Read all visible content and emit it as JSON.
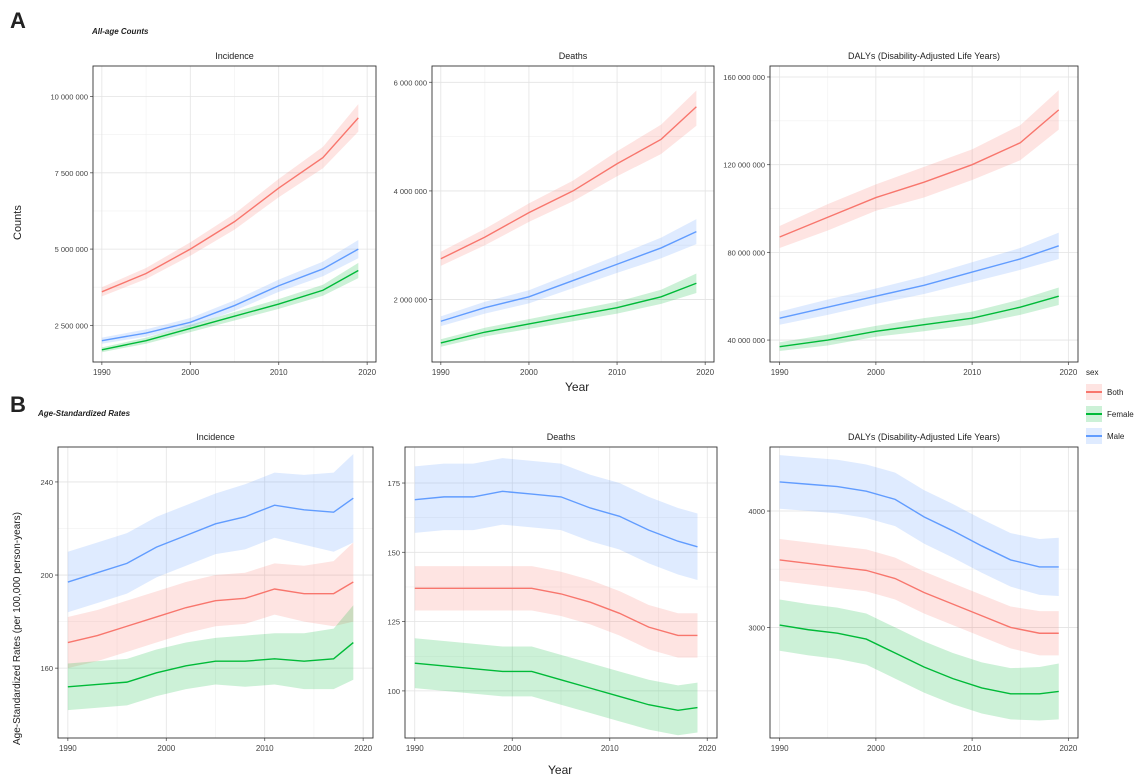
{
  "figure": {
    "panel_a_letter": "A",
    "panel_a_subtitle": "All-age Counts",
    "panel_a_ylabel": "Counts",
    "panel_a_xlabel": "Year",
    "panel_b_letter": "B",
    "panel_b_subtitle": "Age-Standardized Rates",
    "panel_b_ylabel": "Age-Standardized Rates (per 100,000 person-years)",
    "panel_b_xlabel": "Year"
  },
  "legend": {
    "title": "sex",
    "items": [
      {
        "label": "Both",
        "color": "#F8766D"
      },
      {
        "label": "Female",
        "color": "#00BA38"
      },
      {
        "label": "Male",
        "color": "#619CFF"
      }
    ]
  },
  "chart_data": [
    {
      "type": "line",
      "panel": "A",
      "title": "Incidence",
      "x": [
        1990,
        1995,
        2000,
        2005,
        2010,
        2015,
        2019
      ],
      "xlim": [
        1989,
        2021
      ],
      "ylim": [
        1300000,
        11000000
      ],
      "xticks": [
        1990,
        2000,
        2010,
        2020
      ],
      "xtick_labels": [
        "1990",
        "2000",
        "2010",
        "2020"
      ],
      "yticks": [
        2500000,
        5000000,
        7500000,
        10000000
      ],
      "ytick_labels": [
        "2 500 000",
        "5 000 000",
        "7 500 000",
        "10 000 000"
      ],
      "series": [
        {
          "name": "Both",
          "values": [
            3600000,
            4200000,
            5000000,
            5900000,
            7000000,
            8000000,
            9300000
          ],
          "lower": [
            3450000,
            4020000,
            4780000,
            5640000,
            6700000,
            7650000,
            8850000
          ],
          "upper": [
            3750000,
            4380000,
            5220000,
            6160000,
            7300000,
            8350000,
            9750000
          ]
        },
        {
          "name": "Female",
          "values": [
            1700000,
            2000000,
            2400000,
            2800000,
            3200000,
            3650000,
            4300000
          ],
          "lower": [
            1620000,
            1900000,
            2280000,
            2660000,
            3040000,
            3470000,
            4050000
          ],
          "upper": [
            1780000,
            2100000,
            2520000,
            2940000,
            3360000,
            3830000,
            4550000
          ]
        },
        {
          "name": "Male",
          "values": [
            2000000,
            2250000,
            2600000,
            3150000,
            3800000,
            4350000,
            5000000
          ],
          "lower": [
            1900000,
            2130000,
            2460000,
            2980000,
            3600000,
            4110000,
            4700000
          ],
          "upper": [
            2100000,
            2370000,
            2740000,
            3320000,
            4000000,
            4590000,
            5300000
          ]
        }
      ]
    },
    {
      "type": "line",
      "panel": "A",
      "title": "Deaths",
      "x": [
        1990,
        1995,
        2000,
        2005,
        2010,
        2015,
        2019
      ],
      "xlim": [
        1989,
        2021
      ],
      "ylim": [
        850000,
        6300000
      ],
      "xticks": [
        1990,
        2000,
        2010,
        2020
      ],
      "xtick_labels": [
        "1990",
        "2000",
        "2010",
        "2020"
      ],
      "yticks": [
        2000000,
        4000000,
        6000000
      ],
      "ytick_labels": [
        "2 000 000",
        "4 000 000",
        "6 000 000"
      ],
      "series": [
        {
          "name": "Both",
          "values": [
            2750000,
            3150000,
            3600000,
            4000000,
            4500000,
            4950000,
            5550000
          ],
          "lower": [
            2620000,
            3000000,
            3430000,
            3810000,
            4270000,
            4680000,
            5200000
          ],
          "upper": [
            2880000,
            3300000,
            3770000,
            4190000,
            4730000,
            5220000,
            5850000
          ]
        },
        {
          "name": "Female",
          "values": [
            1200000,
            1400000,
            1550000,
            1700000,
            1850000,
            2050000,
            2300000
          ],
          "lower": [
            1130000,
            1320000,
            1460000,
            1600000,
            1740000,
            1920000,
            2120000
          ],
          "upper": [
            1270000,
            1480000,
            1640000,
            1800000,
            1960000,
            2180000,
            2480000
          ]
        },
        {
          "name": "Male",
          "values": [
            1600000,
            1850000,
            2050000,
            2350000,
            2650000,
            2950000,
            3250000
          ],
          "lower": [
            1510000,
            1740000,
            1930000,
            2210000,
            2490000,
            2760000,
            3020000
          ],
          "upper": [
            1690000,
            1960000,
            2170000,
            2490000,
            2810000,
            3140000,
            3480000
          ]
        }
      ]
    },
    {
      "type": "line",
      "panel": "A",
      "title": "DALYs (Disability-Adjusted Life Years)",
      "x": [
        1990,
        1995,
        2000,
        2005,
        2010,
        2015,
        2019
      ],
      "xlim": [
        1989,
        2021
      ],
      "ylim": [
        30000000,
        165000000
      ],
      "xticks": [
        1990,
        2000,
        2010,
        2020
      ],
      "xtick_labels": [
        "1990",
        "2000",
        "2010",
        "2020"
      ],
      "yticks": [
        40000000,
        80000000,
        120000000,
        160000000
      ],
      "ytick_labels": [
        "40 000 000",
        "80 000 000",
        "120 000 000",
        "160 000 000"
      ],
      "series": [
        {
          "name": "Both",
          "values": [
            87000000,
            96000000,
            105000000,
            112000000,
            120000000,
            130000000,
            145000000
          ],
          "lower": [
            82000000,
            90000000,
            99000000,
            105000000,
            113000000,
            122000000,
            136000000
          ],
          "upper": [
            92000000,
            102000000,
            111000000,
            119000000,
            127000000,
            138000000,
            154000000
          ]
        },
        {
          "name": "Female",
          "values": [
            37000000,
            40000000,
            44000000,
            47000000,
            50000000,
            55000000,
            60000000
          ],
          "lower": [
            35000000,
            37500000,
            41500000,
            44000000,
            47000000,
            51500000,
            56000000
          ],
          "upper": [
            39000000,
            42500000,
            46500000,
            50000000,
            53000000,
            58500000,
            64000000
          ]
        },
        {
          "name": "Male",
          "values": [
            50000000,
            55000000,
            60000000,
            65000000,
            71000000,
            77000000,
            83000000
          ],
          "lower": [
            47000000,
            51500000,
            56500000,
            61000000,
            66500000,
            72000000,
            77000000
          ],
          "upper": [
            53000000,
            58500000,
            63500000,
            69000000,
            75500000,
            82000000,
            89000000
          ]
        }
      ]
    },
    {
      "type": "line",
      "panel": "B",
      "title": "Incidence",
      "x": [
        1990,
        1993,
        1996,
        1999,
        2002,
        2005,
        2008,
        2011,
        2014,
        2017,
        2019
      ],
      "xlim": [
        1989,
        2021
      ],
      "ylim": [
        130,
        255
      ],
      "xticks": [
        1990,
        2000,
        2010,
        2020
      ],
      "xtick_labels": [
        "1990",
        "2000",
        "2010",
        "2020"
      ],
      "yticks": [
        160,
        200,
        240
      ],
      "ytick_labels": [
        "160",
        "200",
        "240"
      ],
      "series": [
        {
          "name": "Both",
          "values": [
            171,
            174,
            178,
            182,
            186,
            189,
            190,
            194,
            192,
            192,
            197
          ],
          "lower": [
            160,
            163,
            167,
            171,
            175,
            178,
            179,
            183,
            180,
            178,
            180
          ],
          "upper": [
            182,
            185,
            189,
            193,
            197,
            200,
            201,
            205,
            204,
            206,
            214
          ]
        },
        {
          "name": "Female",
          "values": [
            152,
            153,
            154,
            158,
            161,
            163,
            163,
            164,
            163,
            164,
            171
          ],
          "lower": [
            142,
            143,
            144,
            148,
            151,
            153,
            152,
            153,
            151,
            151,
            155
          ],
          "upper": [
            162,
            163,
            164,
            168,
            171,
            173,
            174,
            175,
            175,
            177,
            187
          ]
        },
        {
          "name": "Male",
          "values": [
            197,
            201,
            205,
            212,
            217,
            222,
            225,
            230,
            228,
            227,
            233
          ],
          "lower": [
            184,
            188,
            192,
            199,
            204,
            209,
            211,
            216,
            213,
            210,
            214
          ],
          "upper": [
            210,
            214,
            218,
            225,
            230,
            235,
            239,
            244,
            243,
            244,
            252
          ]
        }
      ]
    },
    {
      "type": "line",
      "panel": "B",
      "title": "Deaths",
      "x": [
        1990,
        1993,
        1996,
        1999,
        2002,
        2005,
        2008,
        2011,
        2014,
        2017,
        2019
      ],
      "xlim": [
        1989,
        2021
      ],
      "ylim": [
        83,
        188
      ],
      "xticks": [
        1990,
        2000,
        2010,
        2020
      ],
      "xtick_labels": [
        "1990",
        "2000",
        "2010",
        "2020"
      ],
      "yticks": [
        100,
        125,
        150,
        175
      ],
      "ytick_labels": [
        "100",
        "125",
        "150",
        "175"
      ],
      "series": [
        {
          "name": "Both",
          "values": [
            137,
            137,
            137,
            137,
            137,
            135,
            132,
            128,
            123,
            120,
            120
          ],
          "lower": [
            129,
            129,
            129,
            129,
            129,
            127,
            124,
            120,
            115,
            112,
            112
          ],
          "upper": [
            145,
            145,
            145,
            145,
            145,
            143,
            140,
            136,
            131,
            128,
            128
          ]
        },
        {
          "name": "Female",
          "values": [
            110,
            109,
            108,
            107,
            107,
            104,
            101,
            98,
            95,
            93,
            94
          ],
          "lower": [
            101,
            100,
            99,
            98,
            98,
            95,
            92,
            89,
            86,
            84,
            85
          ],
          "upper": [
            119,
            118,
            117,
            116,
            116,
            113,
            110,
            107,
            104,
            102,
            103
          ]
        },
        {
          "name": "Male",
          "values": [
            169,
            170,
            170,
            172,
            171,
            170,
            166,
            163,
            158,
            154,
            152
          ],
          "lower": [
            157,
            158,
            158,
            160,
            159,
            158,
            154,
            151,
            146,
            142,
            140
          ],
          "upper": [
            181,
            182,
            182,
            184,
            183,
            182,
            178,
            175,
            170,
            166,
            164
          ]
        }
      ]
    },
    {
      "type": "line",
      "panel": "B",
      "title": "DALYs (Disability-Adjusted Life Years)",
      "x": [
        1990,
        1993,
        1996,
        1999,
        2002,
        2005,
        2008,
        2011,
        2014,
        2017,
        2019
      ],
      "xlim": [
        1989,
        2021
      ],
      "ylim": [
        2050,
        4550
      ],
      "xticks": [
        1990,
        2000,
        2010,
        2020
      ],
      "xtick_labels": [
        "1990",
        "2000",
        "2010",
        "2020"
      ],
      "yticks": [
        3000,
        4000
      ],
      "ytick_labels": [
        "3000",
        "4000"
      ],
      "series": [
        {
          "name": "Both",
          "values": [
            3580,
            3550,
            3520,
            3490,
            3420,
            3300,
            3200,
            3100,
            3000,
            2950,
            2950
          ],
          "lower": [
            3400,
            3370,
            3340,
            3310,
            3240,
            3120,
            3020,
            2920,
            2820,
            2760,
            2760
          ],
          "upper": [
            3760,
            3730,
            3700,
            3670,
            3600,
            3480,
            3380,
            3280,
            3180,
            3140,
            3140
          ]
        },
        {
          "name": "Female",
          "values": [
            3020,
            2980,
            2950,
            2900,
            2780,
            2660,
            2560,
            2480,
            2430,
            2430,
            2450
          ],
          "lower": [
            2800,
            2760,
            2730,
            2680,
            2560,
            2440,
            2340,
            2260,
            2210,
            2200,
            2210
          ],
          "upper": [
            3240,
            3200,
            3170,
            3120,
            3000,
            2880,
            2780,
            2700,
            2650,
            2660,
            2690
          ]
        },
        {
          "name": "Male",
          "values": [
            4250,
            4230,
            4210,
            4170,
            4100,
            3950,
            3830,
            3700,
            3580,
            3520,
            3520
          ],
          "lower": [
            4020,
            4000,
            3980,
            3940,
            3870,
            3720,
            3600,
            3470,
            3350,
            3280,
            3270
          ],
          "upper": [
            4480,
            4460,
            4440,
            4400,
            4330,
            4180,
            4060,
            3930,
            3810,
            3760,
            3770
          ]
        }
      ]
    }
  ]
}
